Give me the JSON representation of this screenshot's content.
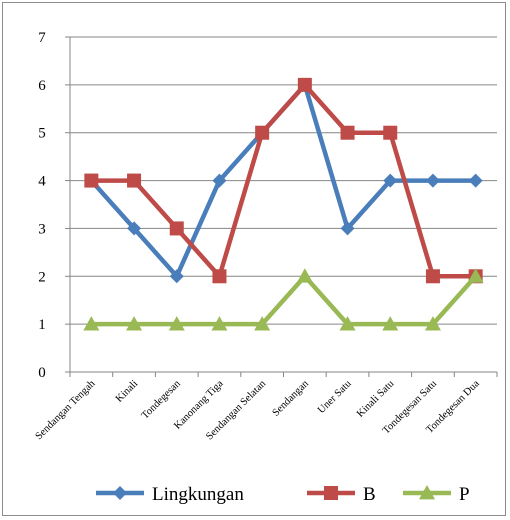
{
  "chart_data": {
    "type": "line",
    "categories": [
      "Sendangan Tengah",
      "Kinali",
      "Tondegesan",
      "Kanonang Tiga",
      "Sendangan Selatan",
      "Sendangan",
      "Uner Satu",
      "Kinali Satu",
      "Tondegesan Satu",
      "Tondegesan Dua"
    ],
    "series": [
      {
        "name": "Lingkungan",
        "values": [
          4,
          3,
          2,
          4,
          5,
          6,
          3,
          4,
          4,
          4
        ],
        "color": "#4a7ebb",
        "marker": "diamond"
      },
      {
        "name": "B",
        "values": [
          4,
          4,
          3,
          2,
          5,
          6,
          5,
          5,
          2,
          2
        ],
        "color": "#be4b48",
        "marker": "square"
      },
      {
        "name": "P",
        "values": [
          1,
          1,
          1,
          1,
          1,
          2,
          1,
          1,
          1,
          2
        ],
        "color": "#98b954",
        "marker": "triangle"
      }
    ],
    "yticks": [
      "0",
      "1",
      "2",
      "3",
      "4",
      "5",
      "6",
      "7"
    ],
    "ylim": [
      0,
      7
    ],
    "grid": true,
    "legend_position": "bottom"
  }
}
